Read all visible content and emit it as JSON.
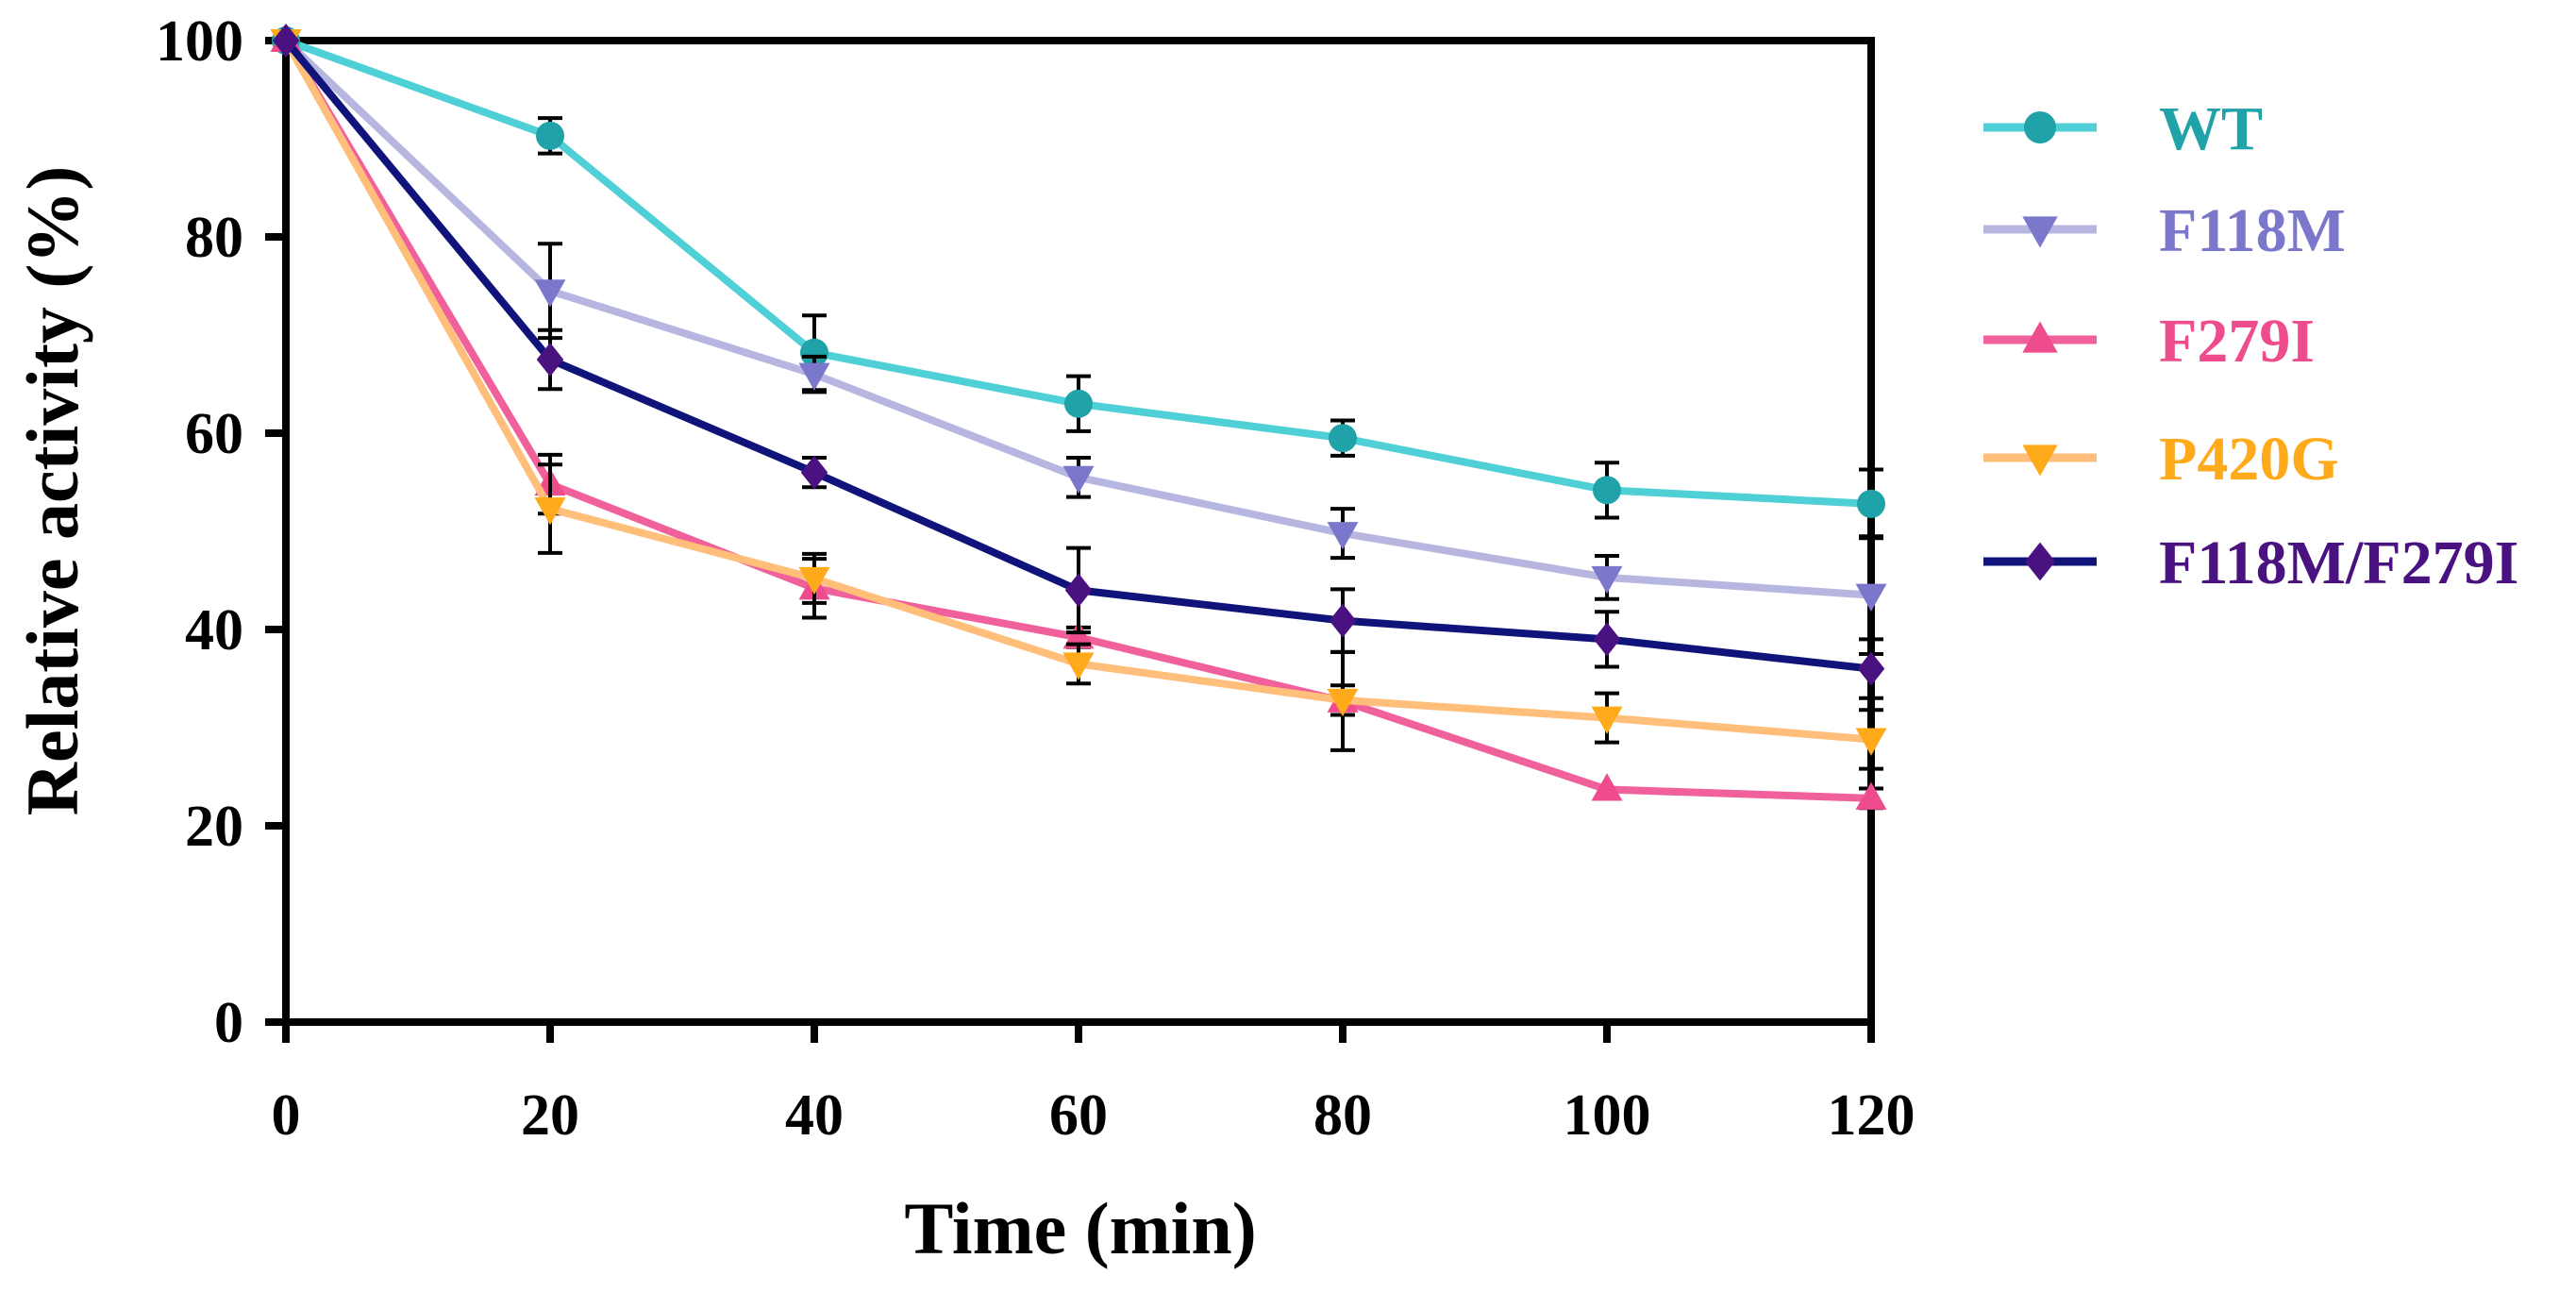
{
  "chart_data": {
    "type": "line",
    "xlabel": "Time (min)",
    "ylabel": "Relative activity (%)",
    "xlim": [
      0,
      120
    ],
    "ylim": [
      0,
      100
    ],
    "x_ticks": [
      "0",
      "20",
      "40",
      "60",
      "80",
      "100",
      "120"
    ],
    "y_ticks": [
      "0",
      "20",
      "40",
      "60",
      "80",
      "100"
    ],
    "grid": false,
    "legend_position": "right",
    "x": [
      0,
      20,
      40,
      60,
      80,
      100,
      120
    ],
    "series": [
      {
        "name": "WT",
        "color": "#4fcfd6",
        "label_color": "#1fa3a8",
        "marker": "circle",
        "values": [
          100,
          90.3,
          68.2,
          63.0,
          59.5,
          54.2,
          52.8
        ],
        "errors": [
          0.5,
          1.8,
          3.8,
          2.8,
          1.8,
          2.8,
          3.5
        ]
      },
      {
        "name": "F118M",
        "color": "#b7b6e0",
        "label_color": "#7b78cc",
        "marker": "triangle-down",
        "values": [
          100,
          74.5,
          66.0,
          55.5,
          49.8,
          45.3,
          43.5
        ],
        "errors": [
          0.5,
          4.8,
          1.8,
          2.0,
          2.5,
          2.2,
          6.0
        ]
      },
      {
        "name": "F279I",
        "color": "#f0609a",
        "label_color": "#ee4c8c",
        "marker": "triangle-up",
        "values": [
          100,
          54.8,
          44.2,
          39.2,
          32.7,
          23.7,
          22.8
        ],
        "errors": [
          0.5,
          3.0,
          3.0,
          1.0,
          5.0,
          0.5,
          1.0
        ]
      },
      {
        "name": "P420G",
        "color": "#ffbe7a",
        "label_color": "#ffaa1a",
        "marker": "triangle-down",
        "values": [
          100,
          52.3,
          45.2,
          36.5,
          32.8,
          31.0,
          28.8
        ],
        "errors": [
          0.5,
          4.5,
          2.5,
          2.0,
          1.5,
          2.5,
          3.0
        ]
      },
      {
        "name": "F118M/F279I",
        "color": "#10147a",
        "label_color": "#4a1180",
        "marker": "diamond",
        "values": [
          100,
          67.5,
          56.0,
          44.0,
          40.9,
          39.0,
          36.0
        ],
        "errors": [
          0.5,
          3.0,
          1.5,
          4.3,
          3.2,
          2.8,
          3.0
        ]
      }
    ]
  }
}
